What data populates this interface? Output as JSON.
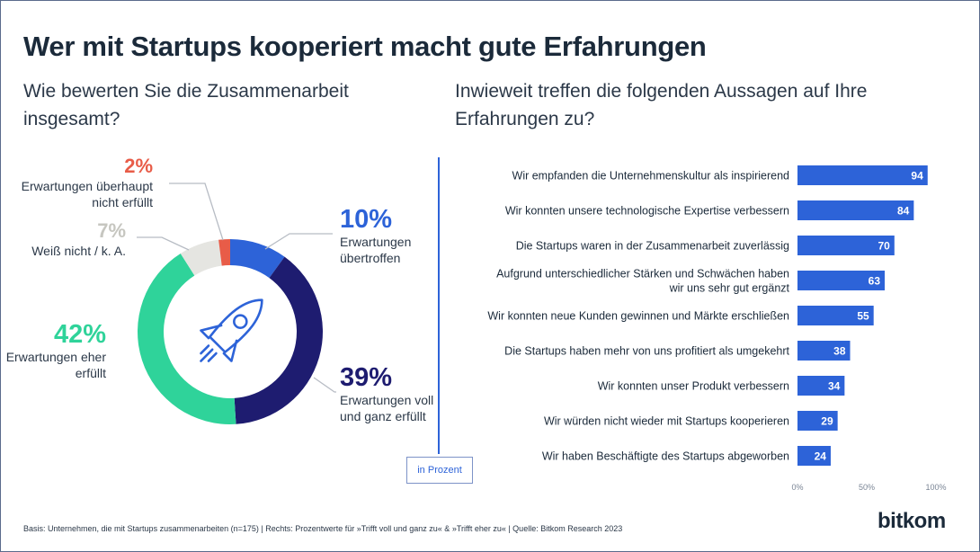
{
  "title": "Wer mit Startups kooperiert macht gute Erfahrungen",
  "left_question": "Wie bewerten Sie die Zusammenarbeit insgesamt?",
  "right_question": "Inwieweit treffen die folgenden Aussagen auf Ihre Erfahrungen zu?",
  "unit_note": "in Prozent",
  "footnote": "Basis: Unternehmen, die mit Startups zusammenarbeiten (n=175) | Rechts: Prozentwerte für »Trifft voll und ganz zu« & »Trifft eher zu« | Quelle: Bitkom Research 2023",
  "logo": "bitkom",
  "center_icon": "rocket-icon",
  "chart_data": [
    {
      "type": "pie",
      "variant": "donut",
      "slices": [
        {
          "key": "s10",
          "value": 10,
          "pct_label": "10%",
          "label": "Erwartungen übertroffen",
          "color": "#2d63d8"
        },
        {
          "key": "s39",
          "value": 39,
          "pct_label": "39%",
          "label": "Erwartungen voll und ganz erfüllt",
          "color": "#1e1c70"
        },
        {
          "key": "s42",
          "value": 42,
          "pct_label": "42%",
          "label": "Erwartungen eher erfüllt",
          "color": "#2fd39a"
        },
        {
          "key": "s7",
          "value": 7,
          "pct_label": "7%",
          "label": "Weiß nicht / k. A.",
          "color": "#e5e5e1"
        },
        {
          "key": "s2",
          "value": 2,
          "pct_label": "2%",
          "label": "Erwartungen überhaupt nicht erfüllt",
          "color": "#e85c48"
        }
      ]
    },
    {
      "type": "bar",
      "orientation": "horizontal",
      "categories": [
        "Wir empfanden die Unternehmenskultur als inspirierend",
        "Wir konnten unsere technologische Expertise verbessern",
        "Die Startups waren in der  Zusammenarbeit zuverlässig",
        "Aufgrund unterschiedlicher Stärken und Schwächen haben wir uns sehr gut ergänzt",
        "Wir konnten neue Kunden gewinnen und Märkte erschließen",
        "Die Startups haben mehr von uns profitiert als umgekehrt",
        "Wir konnten unser Produkt verbessern",
        "Wir würden nicht wieder mit Startups kooperieren",
        "Wir haben Beschäftigte des Startups abgeworben"
      ],
      "category_lines": [
        [
          "Wir empfanden die Unternehmenskultur als inspirierend"
        ],
        [
          "Wir konnten unsere technologische Expertise verbessern"
        ],
        [
          "Die Startups waren in der  Zusammenarbeit zuverlässig"
        ],
        [
          "Aufgrund unterschiedlicher Stärken und Schwächen haben",
          "wir uns sehr gut ergänzt"
        ],
        [
          "Wir konnten neue Kunden gewinnen und Märkte erschließen"
        ],
        [
          "Die Startups haben mehr von uns profitiert als umgekehrt"
        ],
        [
          "Wir konnten unser Produkt verbessern"
        ],
        [
          "Wir würden nicht wieder mit Startups kooperieren"
        ],
        [
          "Wir haben Beschäftigte des Startups abgeworben"
        ]
      ],
      "values": [
        94,
        84,
        70,
        63,
        55,
        38,
        34,
        29,
        24
      ],
      "color": "#2d63d8",
      "xlim": [
        0,
        100
      ],
      "xticks": [
        "0%",
        "50%",
        "100%"
      ],
      "grid": false
    }
  ]
}
